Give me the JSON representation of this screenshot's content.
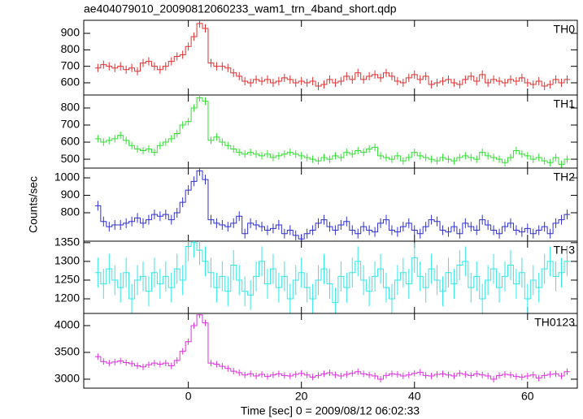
{
  "chart_data": {
    "type": "line",
    "title": "ae404079010_20090812060233_wam1_trn_4band_short.qdp",
    "xlabel": "Time [sec] 0 = 2009/08/12 06:02:33",
    "ylabel": "Counts/sec",
    "xlim": [
      -18.5,
      68.8
    ],
    "xticks": [
      0,
      20,
      40,
      60
    ],
    "x": [
      -16,
      -15,
      -14,
      -13,
      -12,
      -11,
      -10,
      -9,
      -8,
      -7,
      -6,
      -5,
      -4,
      -3,
      -2,
      -1,
      0,
      1,
      2,
      3,
      4,
      5,
      6,
      7,
      8,
      9,
      10,
      11,
      12,
      13,
      14,
      15,
      16,
      17,
      18,
      19,
      20,
      21,
      22,
      23,
      24,
      25,
      26,
      27,
      28,
      29,
      30,
      31,
      32,
      33,
      34,
      35,
      36,
      37,
      38,
      39,
      40,
      41,
      42,
      43,
      44,
      45,
      46,
      47,
      48,
      49,
      50,
      51,
      52,
      53,
      54,
      55,
      56,
      57,
      58,
      59,
      60,
      61,
      62,
      63,
      64,
      65,
      66,
      67
    ],
    "panels": [
      {
        "name": "TH0",
        "color": "#e03030",
        "ylim": [
          526,
          979
        ],
        "yticks": [
          600,
          700,
          800,
          900
        ],
        "error": 25,
        "values": [
          690,
          710,
          700,
          690,
          700,
          680,
          690,
          670,
          720,
          730,
          700,
          680,
          700,
          730,
          760,
          770,
          820,
          880,
          960,
          930,
          720,
          700,
          700,
          690,
          660,
          640,
          610,
          600,
          620,
          610,
          620,
          600,
          610,
          630,
          620,
          600,
          610,
          600,
          610,
          580,
          590,
          620,
          600,
          610,
          640,
          620,
          660,
          620,
          640,
          650,
          630,
          660,
          640,
          610,
          600,
          630,
          650,
          620,
          640,
          590,
          600,
          610,
          620,
          600,
          590,
          620,
          640,
          610,
          650,
          600,
          620,
          610,
          600,
          620,
          610,
          630,
          600,
          590,
          610,
          580,
          590,
          620,
          600,
          620
        ]
      },
      {
        "name": "TH1",
        "color": "#30e030",
        "ylim": [
          448,
          876
        ],
        "yticks": [
          500,
          600,
          700,
          800
        ],
        "error": 22,
        "values": [
          620,
          600,
          610,
          620,
          640,
          610,
          580,
          560,
          550,
          560,
          540,
          580,
          600,
          620,
          650,
          700,
          720,
          800,
          860,
          840,
          610,
          630,
          600,
          580,
          560,
          540,
          530,
          540,
          530,
          520,
          530,
          510,
          520,
          530,
          540,
          530,
          520,
          510,
          500,
          490,
          510,
          500,
          520,
          510,
          540,
          530,
          550,
          540,
          560,
          570,
          520,
          510,
          500,
          520,
          490,
          510,
          540,
          520,
          510,
          500,
          490,
          510,
          500,
          490,
          510,
          520,
          510,
          500,
          540,
          520,
          510,
          500,
          480,
          510,
          550,
          530,
          520,
          500,
          510,
          490,
          480,
          510,
          470,
          500
        ]
      },
      {
        "name": "TH2",
        "color": "#3030d0",
        "ylim": [
          637,
          1056
        ],
        "yticks": [
          800,
          900,
          1000
        ],
        "error": 28,
        "values": [
          840,
          750,
          720,
          730,
          730,
          740,
          750,
          770,
          740,
          760,
          790,
          780,
          790,
          760,
          800,
          860,
          930,
          980,
          1040,
          990,
          760,
          740,
          730,
          720,
          740,
          780,
          680,
          740,
          730,
          720,
          700,
          710,
          730,
          680,
          700,
          670,
          650,
          680,
          700,
          740,
          760,
          720,
          700,
          730,
          750,
          700,
          680,
          720,
          700,
          690,
          740,
          760,
          700,
          690,
          720,
          740,
          700,
          680,
          720,
          760,
          750,
          700,
          690,
          720,
          680,
          740,
          720,
          700,
          760,
          730,
          700,
          680,
          720,
          740,
          700,
          690,
          710,
          680,
          700,
          720,
          680,
          740,
          760,
          790
        ]
      },
      {
        "name": "TH3",
        "color": "#30e8e8",
        "ylim": [
          1161,
          1354
        ],
        "yticks": [
          1200,
          1250,
          1300,
          1350
        ],
        "error": 40,
        "values": [
          1270,
          1240,
          1280,
          1250,
          1230,
          1270,
          1200,
          1250,
          1260,
          1220,
          1270,
          1240,
          1260,
          1230,
          1280,
          1250,
          1340,
          1350,
          1330,
          1300,
          1270,
          1230,
          1260,
          1220,
          1290,
          1250,
          1220,
          1210,
          1260,
          1300,
          1240,
          1280,
          1230,
          1260,
          1200,
          1250,
          1270,
          1230,
          1200,
          1250,
          1280,
          1240,
          1190,
          1260,
          1230,
          1270,
          1300,
          1250,
          1220,
          1260,
          1280,
          1230,
          1200,
          1250,
          1270,
          1240,
          1310,
          1260,
          1230,
          1280,
          1250,
          1220,
          1270,
          1240,
          1290,
          1300,
          1230,
          1260,
          1200,
          1250,
          1280,
          1230,
          1260,
          1290,
          1240,
          1270,
          1200,
          1250,
          1230,
          1280,
          1300,
          1260,
          1270,
          1300
        ]
      },
      {
        "name": "TH0123",
        "color": "#e030e0",
        "ylim": [
          2833,
          4227
        ],
        "yticks": [
          3000,
          3500,
          4000
        ],
        "error": 60,
        "values": [
          3420,
          3330,
          3300,
          3320,
          3340,
          3310,
          3290,
          3250,
          3230,
          3270,
          3300,
          3280,
          3300,
          3250,
          3350,
          3520,
          3700,
          4000,
          4200,
          4050,
          3300,
          3280,
          3240,
          3200,
          3150,
          3120,
          3080,
          3100,
          3060,
          3090,
          3050,
          3080,
          3100,
          3070,
          3060,
          3090,
          3110,
          3080,
          3040,
          3070,
          3100,
          3120,
          3080,
          3060,
          3090,
          3110,
          3140,
          3100,
          3080,
          3060,
          3000,
          3070,
          3100,
          3090,
          3060,
          3080,
          3110,
          3130,
          3070,
          3060,
          3090,
          3100,
          3080,
          3060,
          3110,
          3090,
          3070,
          3100,
          3080,
          3060,
          3000,
          3070,
          3090,
          3080,
          3050,
          3040,
          3060,
          3080,
          3020,
          3070,
          3090,
          3100,
          3060,
          3140
        ]
      }
    ]
  }
}
